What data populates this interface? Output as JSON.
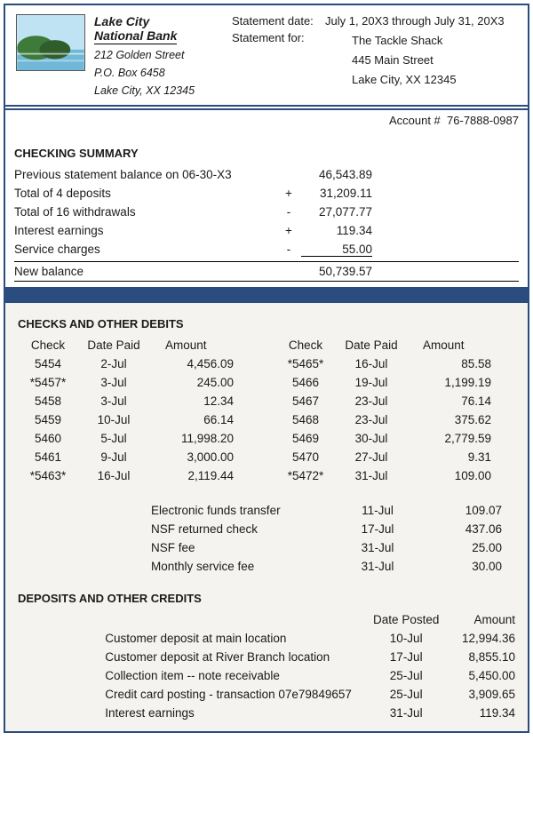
{
  "colors": {
    "border_navy": "#2b4c7e",
    "page_bg": "#f4f3ef",
    "white": "#ffffff",
    "text": "#1a1a1a"
  },
  "header": {
    "bank_name_line1": "Lake City",
    "bank_name_line2": "National Bank",
    "addr1": "212 Golden Street",
    "addr2": "P.O. Box 6458",
    "addr3": "Lake City, XX 12345",
    "statement_date_label": "Statement date:",
    "statement_date_value": "July 1, 20X3 through July 31, 20X3",
    "statement_for_label": "Statement for:",
    "for_line1": "The Tackle Shack",
    "for_line2": "445 Main Street",
    "for_line3": "Lake City, XX 12345"
  },
  "account": {
    "label": "Account #",
    "number": "76-7888-0987"
  },
  "summary": {
    "title": "CHECKING SUMMARY",
    "rows": [
      {
        "desc": "Previous statement balance on 06-30-X3",
        "sign": "",
        "amt": "46,543.89"
      },
      {
        "desc": "Total of 4 deposits",
        "sign": "+",
        "amt": "31,209.11"
      },
      {
        "desc": "Total of 16 withdrawals",
        "sign": "-",
        "amt": "27,077.77"
      },
      {
        "desc": "Interest earnings",
        "sign": "+",
        "amt": "119.34"
      },
      {
        "desc": "Service charges",
        "sign": "-",
        "amt": "55.00"
      }
    ],
    "newbal_desc": "New balance",
    "newbal_amt": "50,739.57"
  },
  "debits": {
    "title": "CHECKS AND OTHER DEBITS",
    "col_headers": {
      "check": "Check",
      "date": "Date Paid",
      "amount": "Amount"
    },
    "left": [
      {
        "check": "5454",
        "date": "2-Jul",
        "amt": "4,456.09"
      },
      {
        "check": "*5457*",
        "date": "3-Jul",
        "amt": "245.00"
      },
      {
        "check": "5458",
        "date": "3-Jul",
        "amt": "12.34"
      },
      {
        "check": "5459",
        "date": "10-Jul",
        "amt": "66.14"
      },
      {
        "check": "5460",
        "date": "5-Jul",
        "amt": "11,998.20"
      },
      {
        "check": "5461",
        "date": "9-Jul",
        "amt": "3,000.00"
      },
      {
        "check": "*5463*",
        "date": "16-Jul",
        "amt": "2,119.44"
      }
    ],
    "right": [
      {
        "check": "*5465*",
        "date": "16-Jul",
        "amt": "85.58"
      },
      {
        "check": "5466",
        "date": "19-Jul",
        "amt": "1,199.19"
      },
      {
        "check": "5467",
        "date": "23-Jul",
        "amt": "76.14"
      },
      {
        "check": "5468",
        "date": "23-Jul",
        "amt": "375.62"
      },
      {
        "check": "5469",
        "date": "30-Jul",
        "amt": "2,779.59"
      },
      {
        "check": "5470",
        "date": "27-Jul",
        "amt": "9.31"
      },
      {
        "check": "*5472*",
        "date": "31-Jul",
        "amt": "109.00"
      }
    ],
    "other": [
      {
        "desc": "Electronic funds transfer",
        "date": "11-Jul",
        "amt": "109.07"
      },
      {
        "desc": "NSF returned check",
        "date": "17-Jul",
        "amt": "437.06"
      },
      {
        "desc": "NSF fee",
        "date": "31-Jul",
        "amt": "25.00"
      },
      {
        "desc": "Monthly service fee",
        "date": "31-Jul",
        "amt": "30.00"
      }
    ]
  },
  "credits": {
    "title": "DEPOSITS AND OTHER CREDITS",
    "col_headers": {
      "date": "Date Posted",
      "amount": "Amount"
    },
    "rows": [
      {
        "desc": "Customer deposit at main location",
        "date": "10-Jul",
        "amt": "12,994.36"
      },
      {
        "desc": "Customer deposit at River Branch location",
        "date": "17-Jul",
        "amt": "8,855.10"
      },
      {
        "desc": "Collection item -- note receivable",
        "date": "25-Jul",
        "amt": "5,450.00"
      },
      {
        "desc": "Credit card posting - transaction 07e79849657",
        "date": "25-Jul",
        "amt": "3,909.65"
      },
      {
        "desc": "Interest earnings",
        "date": "31-Jul",
        "amt": "119.34"
      }
    ]
  }
}
